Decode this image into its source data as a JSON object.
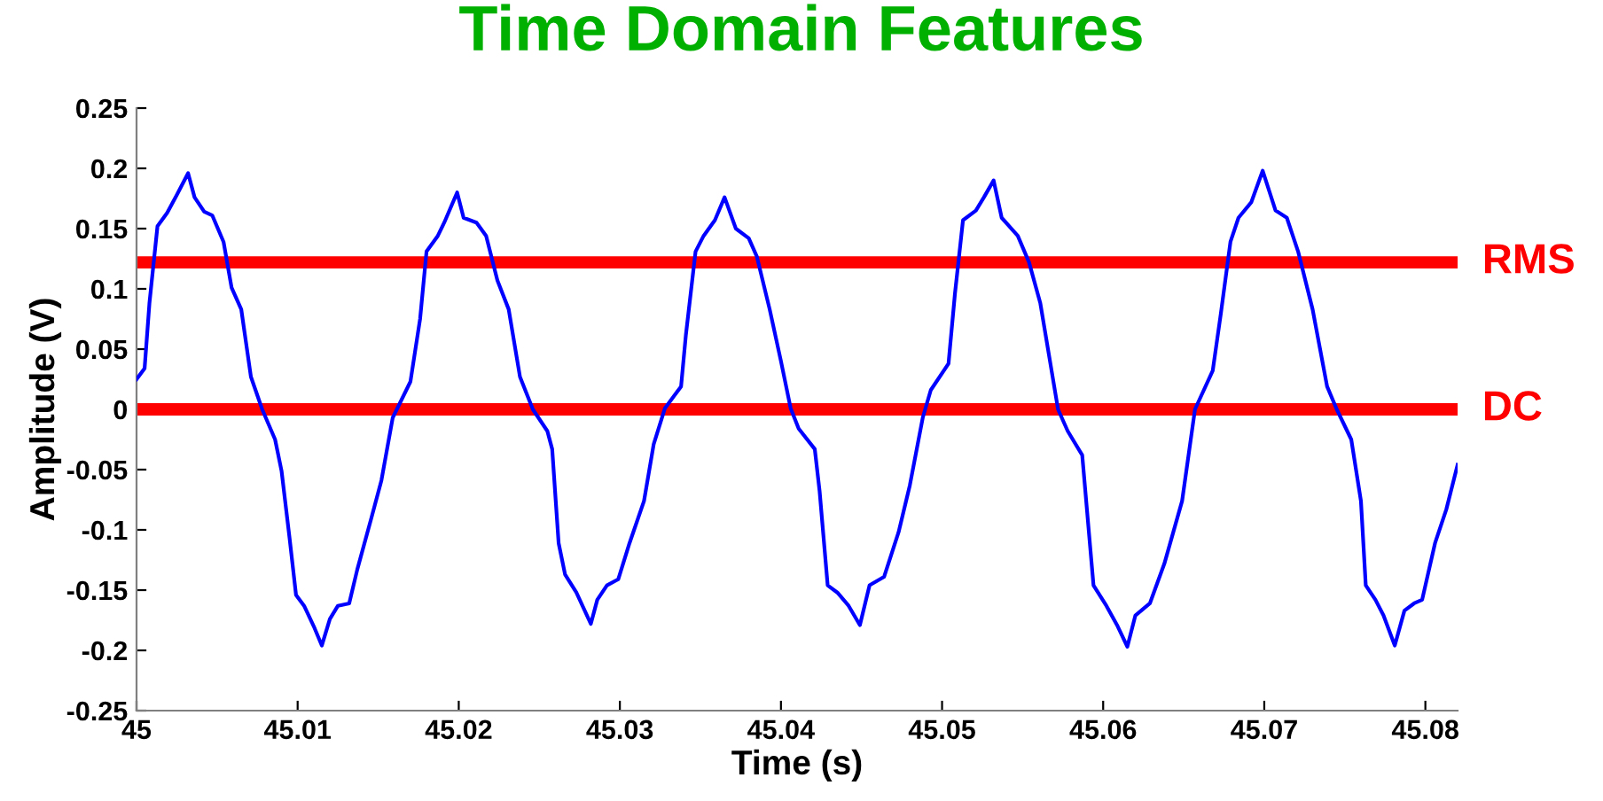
{
  "chart_data": {
    "type": "line",
    "title": "Time Domain Features",
    "xlabel": "Time (s)",
    "ylabel": "Amplitude (V)",
    "xlim": [
      45,
      45.082
    ],
    "ylim": [
      -0.25,
      0.25
    ],
    "xticks": [
      45,
      45.01,
      45.02,
      45.03,
      45.04,
      45.05,
      45.06,
      45.07,
      45.08
    ],
    "yticks": [
      -0.25,
      -0.2,
      -0.15,
      -0.1,
      -0.05,
      0,
      0.05,
      0.1,
      0.15,
      0.2,
      0.25
    ],
    "grid": false,
    "marker": "none",
    "line_style": "solid",
    "ref_lines": [
      {
        "axis": "y",
        "value": 0.122,
        "label": "RMS",
        "color": "#ff0000"
      },
      {
        "axis": "y",
        "value": 0,
        "label": "DC",
        "color": "#ff0000"
      }
    ],
    "series": [
      {
        "color": "#0000ff",
        "x": [
          45.0,
          45.0005,
          45.0008,
          45.0013,
          45.0019,
          45.0025,
          45.0032,
          45.0036,
          45.0042,
          45.0047,
          45.0054,
          45.0059,
          45.0065,
          45.0071,
          45.0078,
          45.0086,
          45.009,
          45.0095,
          45.0099,
          45.0104,
          45.011,
          45.0115,
          45.012,
          45.0125,
          45.0132,
          45.0137,
          45.0146,
          45.0152,
          45.0159,
          45.017,
          45.0176,
          45.018,
          45.0187,
          45.0191,
          45.0199,
          45.0203,
          45.0211,
          45.0217,
          45.0224,
          45.0231,
          45.0238,
          45.0246,
          45.0255,
          45.0258,
          45.0262,
          45.0266,
          45.0273,
          45.0282,
          45.0286,
          45.0292,
          45.0299,
          45.0306,
          45.0315,
          45.0321,
          45.0328,
          45.0338,
          45.0341,
          45.0347,
          45.0352,
          45.0359,
          45.0365,
          45.0372,
          45.038,
          45.0385,
          45.0393,
          45.04,
          45.0406,
          45.0411,
          45.0421,
          45.0424,
          45.0429,
          45.0435,
          45.0442,
          45.0449,
          45.0455,
          45.0464,
          45.0473,
          45.048,
          45.0488,
          45.0493,
          45.0504,
          45.0508,
          45.0513,
          45.0521,
          45.0526,
          45.0532,
          45.0537,
          45.0547,
          45.0554,
          45.0561,
          45.0572,
          45.0578,
          45.0587,
          45.0594,
          45.0602,
          45.0609,
          45.0615,
          45.062,
          45.0629,
          45.0638,
          45.0649,
          45.0657,
          45.0668,
          45.0673,
          45.0679,
          45.0684,
          45.0692,
          45.0699,
          45.0707,
          45.0714,
          45.0721,
          45.073,
          45.0739,
          45.0745,
          45.0754,
          45.076,
          45.0763,
          45.0769,
          45.0774,
          45.0781,
          45.0787,
          45.0793,
          45.0798,
          45.0806,
          45.0813,
          45.082
        ],
        "values": [
          0.025,
          0.034,
          0.088,
          0.152,
          0.163,
          0.178,
          0.196,
          0.176,
          0.164,
          0.161,
          0.139,
          0.101,
          0.083,
          0.027,
          0.0,
          -0.025,
          -0.051,
          -0.107,
          -0.154,
          -0.163,
          -0.18,
          -0.196,
          -0.174,
          -0.163,
          -0.161,
          -0.133,
          -0.089,
          -0.059,
          -0.007,
          0.023,
          0.075,
          0.131,
          0.144,
          0.155,
          0.18,
          0.159,
          0.155,
          0.144,
          0.107,
          0.083,
          0.027,
          0.0,
          -0.018,
          -0.033,
          -0.111,
          -0.137,
          -0.152,
          -0.178,
          -0.158,
          -0.146,
          -0.141,
          -0.111,
          -0.076,
          -0.029,
          0.001,
          0.019,
          0.062,
          0.131,
          0.144,
          0.157,
          0.176,
          0.15,
          0.142,
          0.127,
          0.083,
          0.04,
          0.001,
          -0.016,
          -0.033,
          -0.068,
          -0.146,
          -0.152,
          -0.163,
          -0.179,
          -0.146,
          -0.139,
          -0.102,
          -0.063,
          -0.007,
          0.016,
          0.038,
          0.096,
          0.157,
          0.165,
          0.176,
          0.19,
          0.159,
          0.144,
          0.122,
          0.088,
          0.0,
          -0.018,
          -0.038,
          -0.146,
          -0.163,
          -0.18,
          -0.197,
          -0.171,
          -0.161,
          -0.128,
          -0.076,
          0.0,
          0.032,
          0.079,
          0.139,
          0.159,
          0.172,
          0.198,
          0.165,
          0.159,
          0.131,
          0.083,
          0.019,
          0.0,
          -0.025,
          -0.076,
          -0.146,
          -0.158,
          -0.171,
          -0.196,
          -0.167,
          -0.161,
          -0.158,
          -0.111,
          -0.083,
          -0.046
        ]
      }
    ]
  }
}
